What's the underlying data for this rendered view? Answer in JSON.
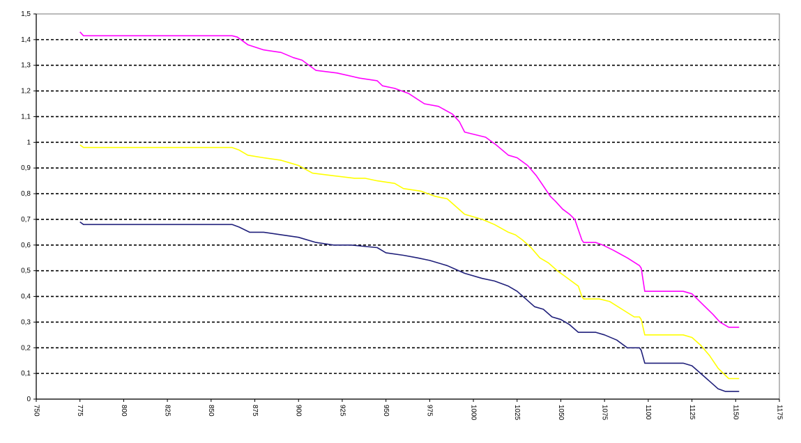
{
  "chart_data": {
    "type": "line",
    "title": "",
    "xlabel": "",
    "ylabel": "",
    "xlim": [
      750,
      1175
    ],
    "ylim": [
      0,
      1.5
    ],
    "grid": true,
    "y_ticks": [
      "0",
      "0,1",
      "0,2",
      "0,3",
      "0,4",
      "0,5",
      "0,6",
      "0,7",
      "0,8",
      "0,9",
      "1",
      "1,1",
      "1,2",
      "1,3",
      "1,4",
      "1,5"
    ],
    "x_ticks": [
      "750",
      "775",
      "800",
      "825",
      "850",
      "875",
      "900",
      "925",
      "950",
      "975",
      "1000",
      "1025",
      "1050",
      "1075",
      "1100",
      "1125",
      "1150",
      "1175"
    ],
    "series": [
      {
        "color": "#ff00ff",
        "x": [
          775,
          777,
          862,
          865,
          871,
          880,
          890,
          897,
          902,
          910,
          922,
          935,
          945,
          948,
          955,
          963,
          972,
          980,
          988,
          992,
          995,
          1007,
          1013,
          1020,
          1025,
          1031,
          1036,
          1040,
          1044,
          1047,
          1051,
          1055,
          1058,
          1060,
          1062,
          1063,
          1070,
          1074,
          1080,
          1088,
          1095,
          1096,
          1098,
          1110,
          1120,
          1125,
          1131,
          1137,
          1141,
          1146,
          1152
        ],
        "y": [
          1.43,
          1.415,
          1.415,
          1.41,
          1.38,
          1.36,
          1.35,
          1.33,
          1.32,
          1.28,
          1.27,
          1.25,
          1.24,
          1.22,
          1.21,
          1.19,
          1.15,
          1.14,
          1.11,
          1.08,
          1.04,
          1.02,
          0.99,
          0.95,
          0.94,
          0.91,
          0.87,
          0.83,
          0.79,
          0.77,
          0.74,
          0.72,
          0.7,
          0.66,
          0.62,
          0.61,
          0.61,
          0.6,
          0.58,
          0.55,
          0.52,
          0.51,
          0.42,
          0.42,
          0.42,
          0.41,
          0.37,
          0.33,
          0.3,
          0.28,
          0.28
        ]
      },
      {
        "color": "#ffff00",
        "x": [
          775,
          777,
          862,
          866,
          871,
          880,
          890,
          895,
          900,
          908,
          920,
          932,
          938,
          945,
          955,
          960,
          970,
          978,
          985,
          990,
          995,
          1005,
          1012,
          1020,
          1024,
          1028,
          1033,
          1038,
          1043,
          1048,
          1052,
          1056,
          1060,
          1062,
          1063,
          1072,
          1078,
          1085,
          1092,
          1095,
          1096,
          1098,
          1110,
          1120,
          1125,
          1130,
          1135,
          1140,
          1146,
          1152
        ],
        "y": [
          0.99,
          0.98,
          0.98,
          0.97,
          0.95,
          0.94,
          0.93,
          0.92,
          0.91,
          0.88,
          0.87,
          0.86,
          0.86,
          0.85,
          0.84,
          0.82,
          0.81,
          0.79,
          0.78,
          0.75,
          0.72,
          0.7,
          0.68,
          0.65,
          0.64,
          0.62,
          0.59,
          0.55,
          0.53,
          0.5,
          0.48,
          0.46,
          0.44,
          0.4,
          0.39,
          0.39,
          0.38,
          0.35,
          0.32,
          0.32,
          0.31,
          0.25,
          0.25,
          0.25,
          0.24,
          0.21,
          0.17,
          0.12,
          0.08,
          0.08
        ]
      },
      {
        "color": "#1f1f7a",
        "x": [
          775,
          777,
          862,
          866,
          872,
          880,
          890,
          900,
          910,
          920,
          930,
          945,
          950,
          960,
          968,
          975,
          985,
          995,
          1005,
          1012,
          1020,
          1025,
          1030,
          1035,
          1040,
          1045,
          1050,
          1055,
          1060,
          1063,
          1070,
          1075,
          1082,
          1088,
          1095,
          1096,
          1098,
          1112,
          1120,
          1125,
          1130,
          1135,
          1140,
          1144,
          1152
        ],
        "y": [
          0.69,
          0.68,
          0.68,
          0.67,
          0.65,
          0.65,
          0.64,
          0.63,
          0.61,
          0.6,
          0.6,
          0.59,
          0.57,
          0.56,
          0.55,
          0.54,
          0.52,
          0.49,
          0.47,
          0.46,
          0.44,
          0.42,
          0.39,
          0.36,
          0.35,
          0.32,
          0.31,
          0.29,
          0.26,
          0.26,
          0.26,
          0.25,
          0.23,
          0.2,
          0.2,
          0.19,
          0.14,
          0.14,
          0.14,
          0.13,
          0.1,
          0.07,
          0.04,
          0.03,
          0.03
        ]
      }
    ]
  }
}
